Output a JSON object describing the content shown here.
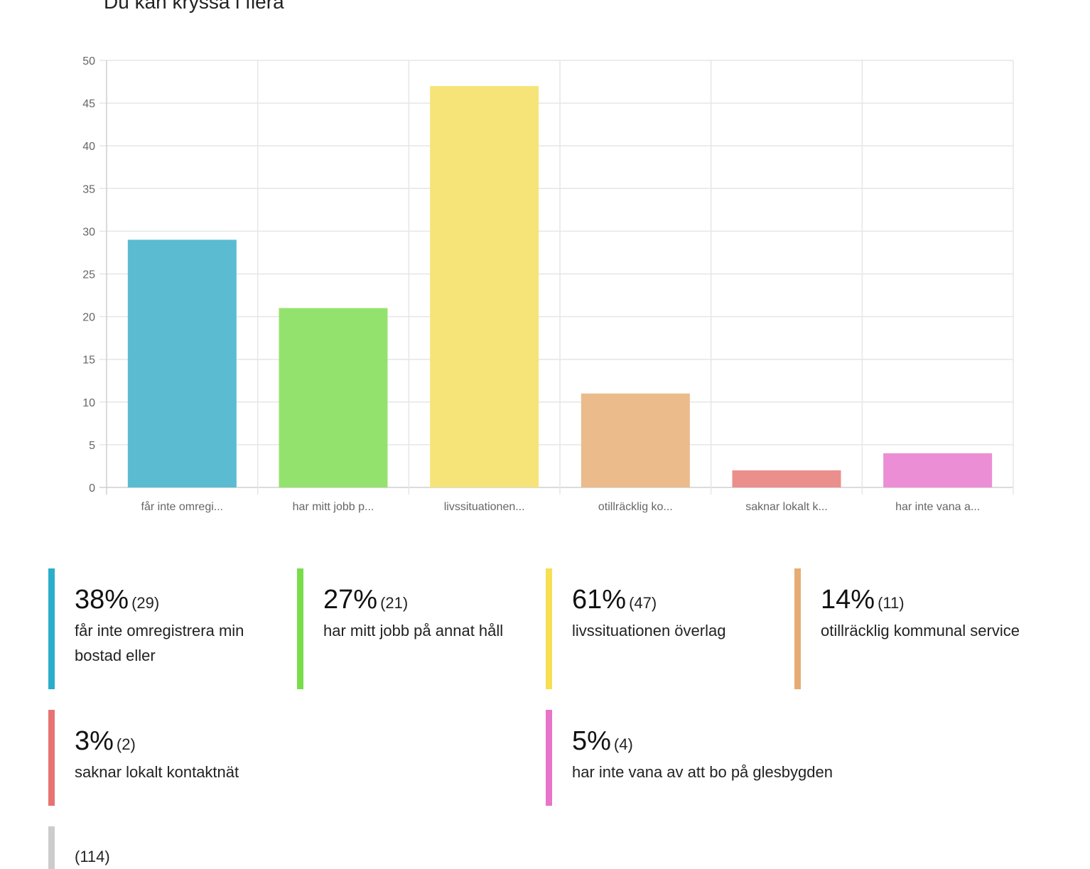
{
  "header": {
    "subtitle": "Du kan kryssa i flera"
  },
  "chart_data": {
    "type": "bar",
    "categories": [
      "får inte omregi...",
      "har mitt jobb p...",
      "livssituationen...",
      "otillräcklig ko...",
      "saknar lokalt k...",
      "har inte vana a..."
    ],
    "values": [
      29,
      21,
      47,
      11,
      2,
      4
    ],
    "colors": [
      "#5bbcd1",
      "#94e26e",
      "#f7e479",
      "#ebbb8c",
      "#ea8f8c",
      "#ec8ed6"
    ],
    "ylim": [
      0,
      50
    ],
    "yticks": [
      0,
      5,
      10,
      15,
      20,
      25,
      30,
      35,
      40,
      45,
      50
    ],
    "grid": true,
    "title": "",
    "xlabel": "",
    "ylabel": ""
  },
  "legend": {
    "items": [
      {
        "pct": "38%",
        "count": "(29)",
        "label": "får inte omregistrera min bostad eller",
        "color": "#2aaecb"
      },
      {
        "pct": "27%",
        "count": "(21)",
        "label": "har mitt jobb på annat håll",
        "color": "#78dd49"
      },
      {
        "pct": "61%",
        "count": "(47)",
        "label": "livssituationen överlag",
        "color": "#f6df52"
      },
      {
        "pct": "14%",
        "count": "(11)",
        "label": "otillräcklig kommunal service",
        "color": "#e6ac73"
      },
      {
        "pct": "3%",
        "count": "(2)",
        "label": "saknar lokalt kontaktnät",
        "color": "#e67372"
      },
      {
        "pct": "5%",
        "count": "(4)",
        "label": "har inte vana av att bo på glesbygden",
        "color": "#e774cb"
      },
      {
        "pct": "",
        "count": "(114)",
        "label": "",
        "color": "#cccccc"
      }
    ]
  }
}
